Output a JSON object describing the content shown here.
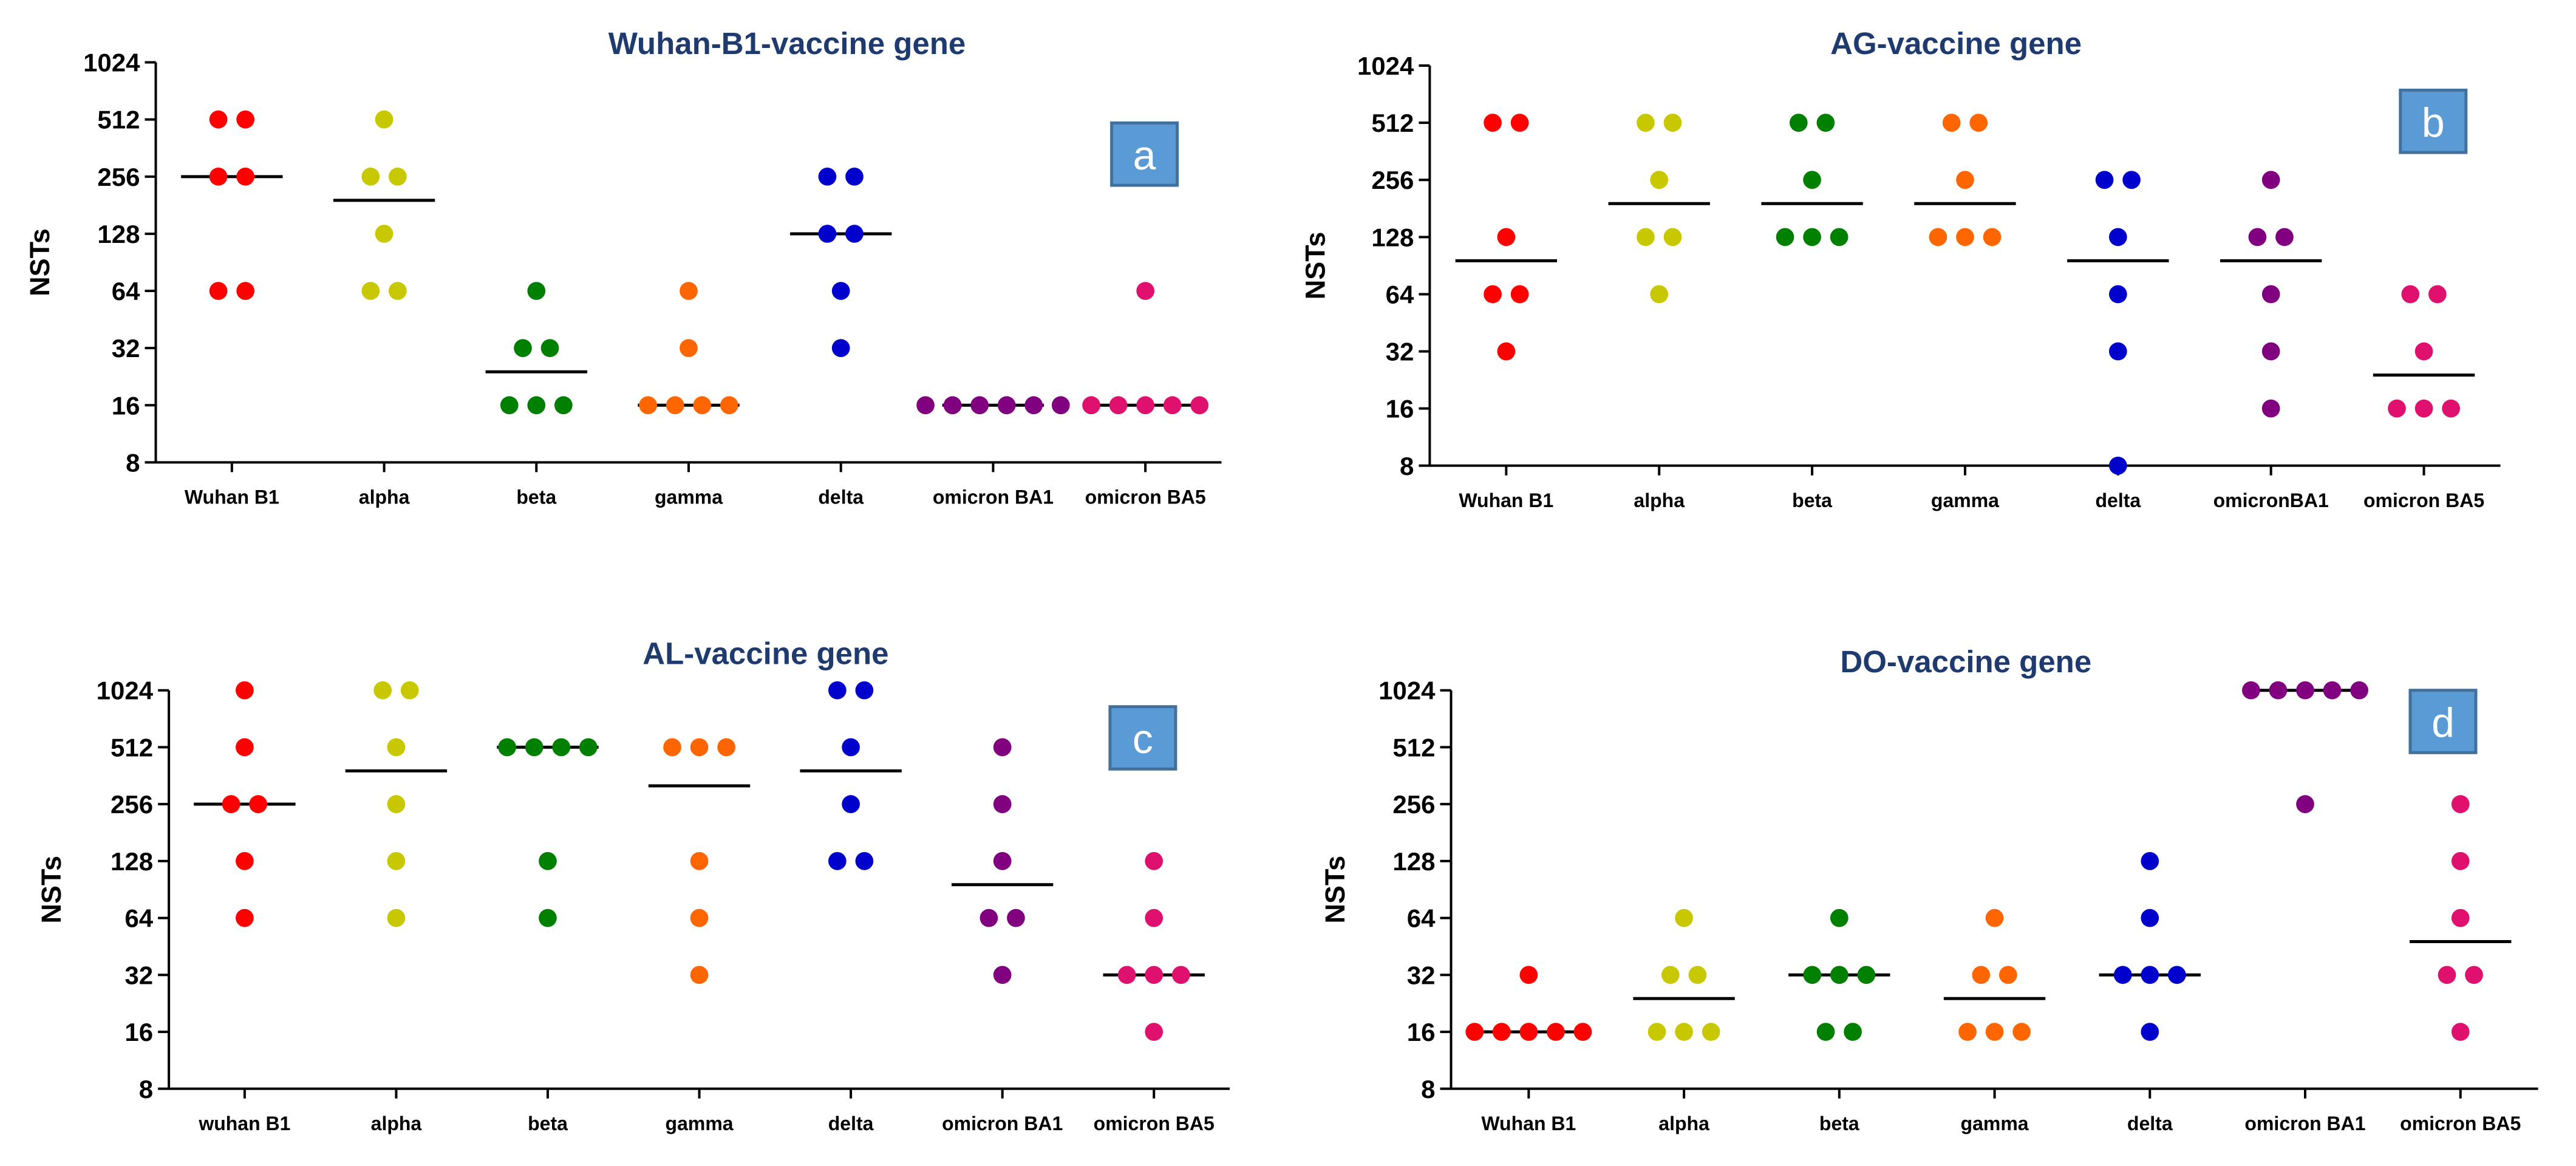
{
  "chart_data": [
    {
      "type": "scatter",
      "panel_label": "a",
      "title": "Wuhan-B1-vaccine gene",
      "ylabel": "NSTs",
      "xlabel": "",
      "yscale": "log2",
      "ylim": [
        8,
        1024
      ],
      "yticks": [
        "8",
        "16",
        "32",
        "64",
        "128",
        "256",
        "512",
        "1024"
      ],
      "categories": [
        "Wuhan B1",
        "alpha",
        "beta",
        "gamma",
        "delta",
        "omicron BA1",
        "omicron BA5"
      ],
      "colors": [
        "#ff0000",
        "#c8c800",
        "#008000",
        "#ff6600",
        "#0000cc",
        "#800080",
        "#e0106e"
      ],
      "series": [
        {
          "name": "Wuhan B1",
          "values": [
            512,
            512,
            256,
            256,
            64,
            64
          ],
          "median": 256
        },
        {
          "name": "alpha",
          "values": [
            512,
            256,
            256,
            128,
            64,
            64
          ],
          "median": 192
        },
        {
          "name": "beta",
          "values": [
            64,
            32,
            32,
            16,
            16,
            16
          ],
          "median": 24
        },
        {
          "name": "gamma",
          "values": [
            64,
            32,
            16,
            16,
            16,
            16
          ],
          "median": 16
        },
        {
          "name": "delta",
          "values": [
            256,
            256,
            128,
            128,
            64,
            32
          ],
          "median": 128
        },
        {
          "name": "omicron BA1",
          "values": [
            16,
            16,
            16,
            16,
            16,
            16
          ],
          "median": 16
        },
        {
          "name": "omicron BA5",
          "values": [
            64,
            16,
            16,
            16,
            16,
            16
          ],
          "median": 16
        }
      ]
    },
    {
      "type": "scatter",
      "panel_label": "b",
      "title": "AG-vaccine gene",
      "ylabel": "NSTs",
      "xlabel": "",
      "yscale": "log2",
      "ylim": [
        8,
        1024
      ],
      "yticks": [
        "8",
        "16",
        "32",
        "64",
        "128",
        "256",
        "512",
        "1024"
      ],
      "categories": [
        "Wuhan B1",
        "alpha",
        "beta",
        "gamma",
        "delta",
        "omicronBA1",
        "omicron BA5"
      ],
      "colors": [
        "#ff0000",
        "#c8c800",
        "#008000",
        "#ff6600",
        "#0000cc",
        "#800080",
        "#e0106e"
      ],
      "series": [
        {
          "name": "Wuhan B1",
          "values": [
            512,
            512,
            128,
            64,
            64,
            32
          ],
          "median": 96
        },
        {
          "name": "alpha",
          "values": [
            512,
            512,
            256,
            128,
            128,
            64
          ],
          "median": 192
        },
        {
          "name": "beta",
          "values": [
            512,
            512,
            256,
            128,
            128,
            128
          ],
          "median": 192
        },
        {
          "name": "gamma",
          "values": [
            512,
            512,
            256,
            128,
            128,
            128
          ],
          "median": 192
        },
        {
          "name": "delta",
          "values": [
            256,
            256,
            128,
            64,
            32,
            8
          ],
          "median": 96
        },
        {
          "name": "omicronBA1",
          "values": [
            256,
            128,
            128,
            64,
            32,
            16
          ],
          "median": 96
        },
        {
          "name": "omicron BA5",
          "values": [
            64,
            64,
            32,
            16,
            16,
            16
          ],
          "median": 24
        }
      ]
    },
    {
      "type": "scatter",
      "panel_label": "c",
      "title": "AL-vaccine gene",
      "ylabel": "NSTs",
      "xlabel": "",
      "yscale": "log2",
      "ylim": [
        8,
        1024
      ],
      "yticks": [
        "8",
        "16",
        "32",
        "64",
        "128",
        "256",
        "512",
        "1024"
      ],
      "categories": [
        "wuhan B1",
        "alpha",
        "beta",
        "gamma",
        "delta",
        "omicron BA1",
        "omicron BA5"
      ],
      "colors": [
        "#ff0000",
        "#c8c800",
        "#008000",
        "#ff6600",
        "#0000cc",
        "#800080",
        "#e0106e"
      ],
      "series": [
        {
          "name": "wuhan B1",
          "values": [
            1024,
            512,
            256,
            256,
            128,
            64
          ],
          "median": 256
        },
        {
          "name": "alpha",
          "values": [
            1024,
            1024,
            512,
            256,
            128,
            64
          ],
          "median": 384
        },
        {
          "name": "beta",
          "values": [
            512,
            512,
            512,
            512,
            128,
            64
          ],
          "median": 512
        },
        {
          "name": "gamma",
          "values": [
            512,
            512,
            512,
            128,
            64,
            32
          ],
          "median": 320
        },
        {
          "name": "delta",
          "values": [
            1024,
            1024,
            512,
            256,
            128,
            128
          ],
          "median": 384
        },
        {
          "name": "omicron BA1",
          "values": [
            512,
            256,
            128,
            64,
            64,
            32
          ],
          "median": 96
        },
        {
          "name": "omicron BA5",
          "values": [
            128,
            64,
            32,
            32,
            32,
            16
          ],
          "median": 32
        }
      ]
    },
    {
      "type": "scatter",
      "panel_label": "d",
      "title": "DO-vaccine gene",
      "ylabel": "NSTs",
      "xlabel": "",
      "yscale": "log2",
      "ylim": [
        8,
        1024
      ],
      "yticks": [
        "8",
        "16",
        "32",
        "64",
        "128",
        "256",
        "512",
        "1024"
      ],
      "categories": [
        "Wuhan B1",
        "alpha",
        "beta",
        "gamma",
        "delta",
        "omicron BA1",
        "omicron BA5"
      ],
      "colors": [
        "#ff0000",
        "#c8c800",
        "#008000",
        "#ff6600",
        "#0000cc",
        "#800080",
        "#e0106e"
      ],
      "series": [
        {
          "name": "Wuhan B1",
          "values": [
            32,
            16,
            16,
            16,
            16,
            16
          ],
          "median": 16
        },
        {
          "name": "alpha",
          "values": [
            64,
            32,
            32,
            16,
            16,
            16
          ],
          "median": 24
        },
        {
          "name": "beta",
          "values": [
            64,
            32,
            32,
            32,
            16,
            16
          ],
          "median": 32
        },
        {
          "name": "gamma",
          "values": [
            64,
            32,
            32,
            16,
            16,
            16
          ],
          "median": 24
        },
        {
          "name": "delta",
          "values": [
            128,
            64,
            32,
            32,
            32,
            16
          ],
          "median": 32
        },
        {
          "name": "omicron BA1",
          "values": [
            1024,
            1024,
            1024,
            1024,
            1024,
            256
          ],
          "median": 1024
        },
        {
          "name": "omicron BA5",
          "values": [
            256,
            128,
            64,
            32,
            32,
            16
          ],
          "median": 48
        }
      ]
    }
  ],
  "colors": {
    "title": "#1f3a6e",
    "panel_label_bg": "#5b9bd5",
    "panel_label_border": "#41719c",
    "axis": "#000000"
  }
}
